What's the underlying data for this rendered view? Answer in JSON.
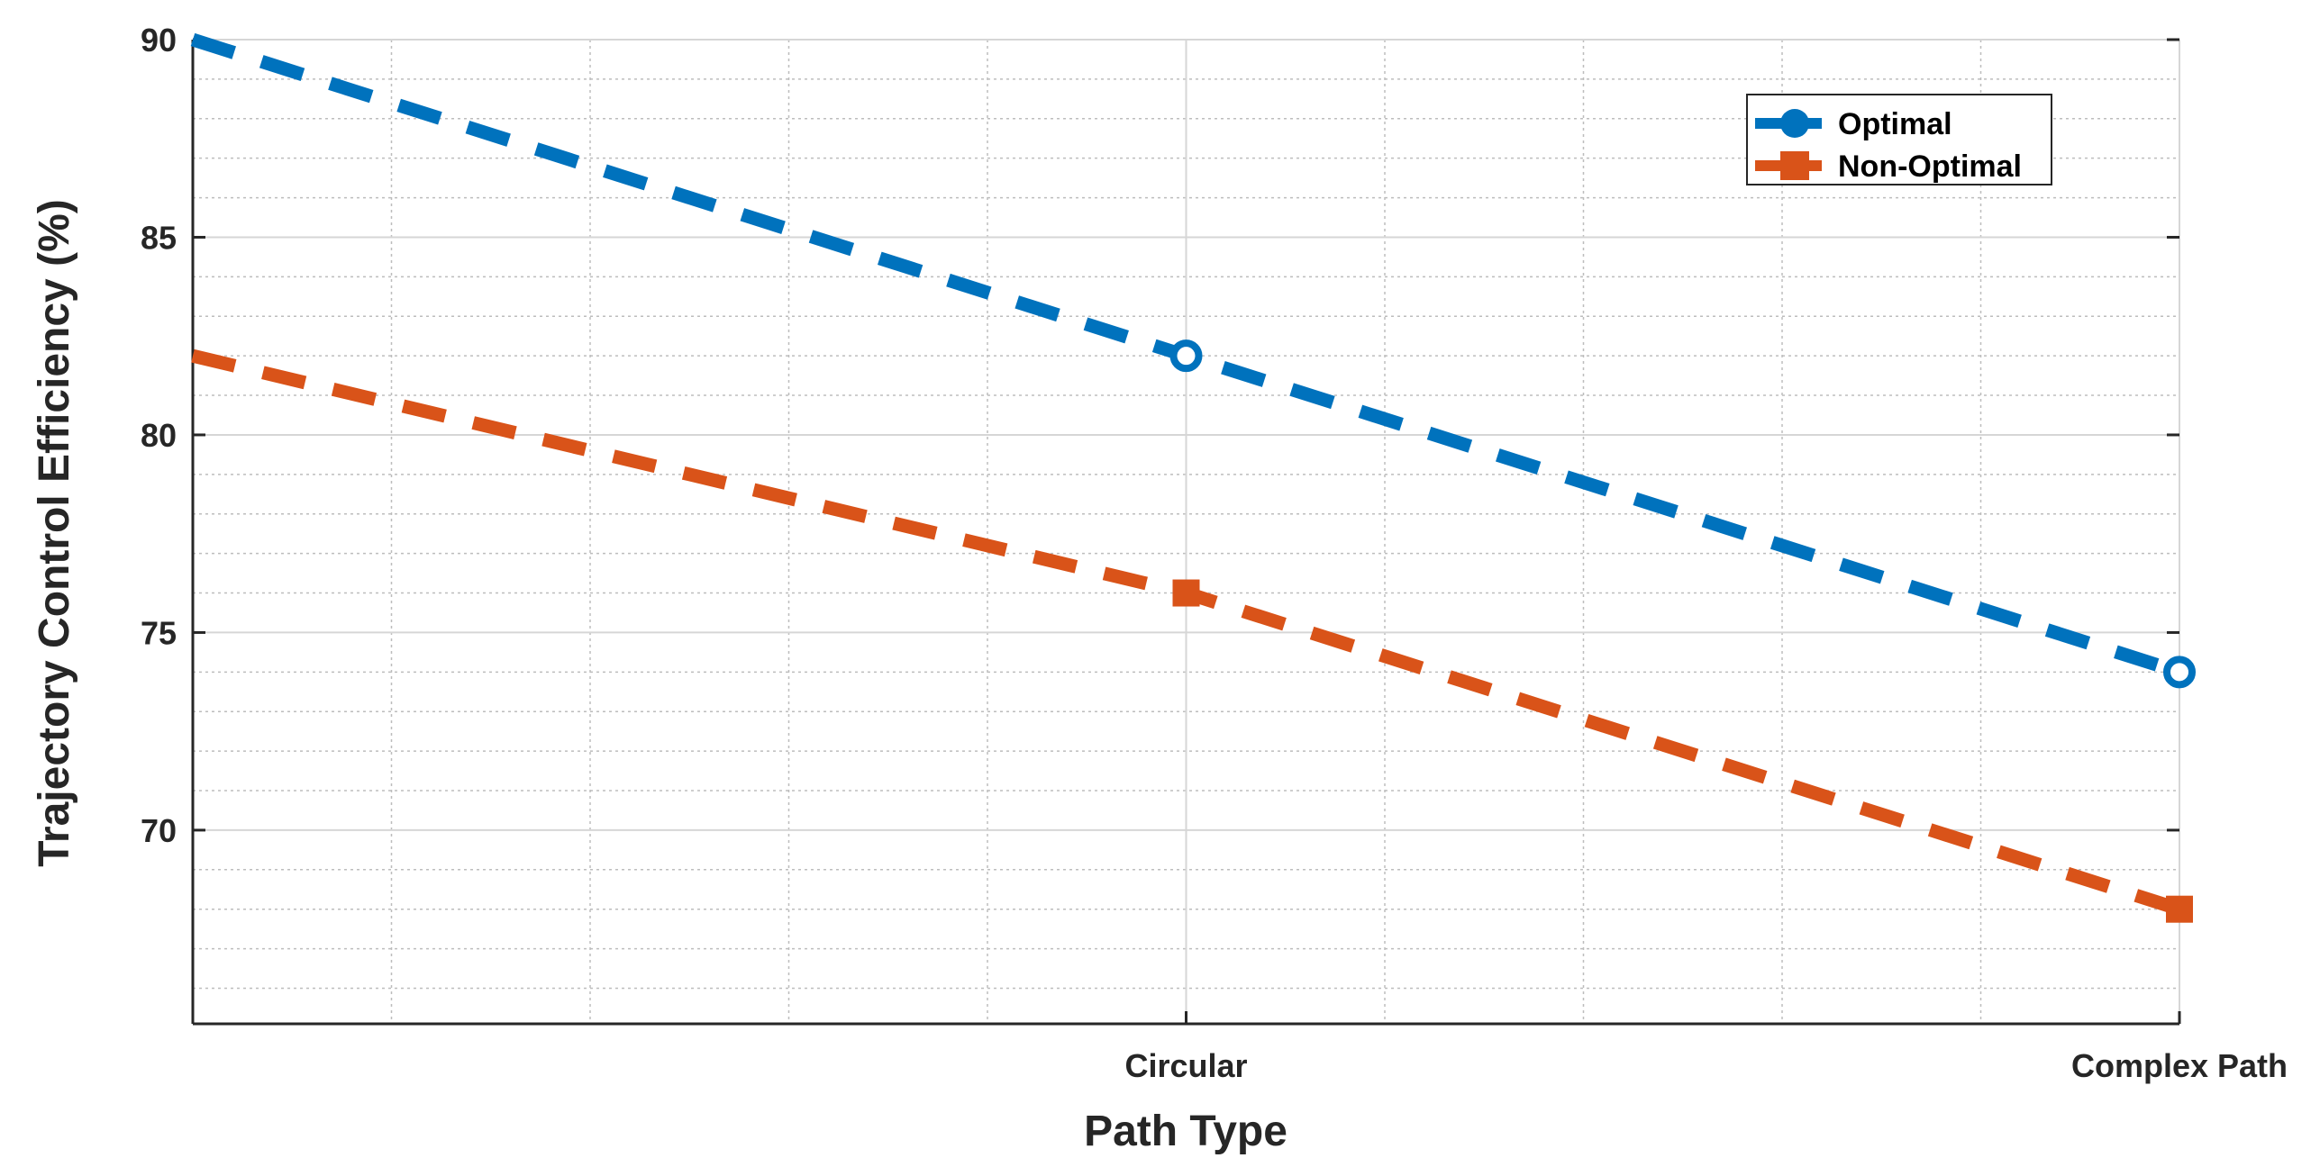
{
  "chart_data": {
    "type": "line",
    "categories": [
      "",
      "Circular",
      "Complex Path"
    ],
    "series": [
      {
        "name": "Optimal",
        "values": [
          90,
          82,
          74
        ],
        "color": "#0072BD",
        "marker": "circle",
        "line_style": "dashed"
      },
      {
        "name": "Non-Optimal",
        "values": [
          82,
          76,
          68
        ],
        "color": "#D95319",
        "marker": "square",
        "line_style": "dashed"
      }
    ],
    "x_tick_labels": [
      "Circular",
      "Complex Path"
    ],
    "y_tick_labels": [
      "70",
      "75",
      "80",
      "85",
      "90"
    ],
    "xlabel": "Path Type",
    "ylabel": "Trajectory Control Efficiency (%)",
    "ylim": [
      65.1,
      90
    ],
    "y_ticks": [
      70,
      75,
      80,
      85,
      90
    ],
    "y_minor_step": 1,
    "x_minor_divisions": 5,
    "grid": true,
    "minor_grid": true,
    "legend_position": "top-right"
  }
}
